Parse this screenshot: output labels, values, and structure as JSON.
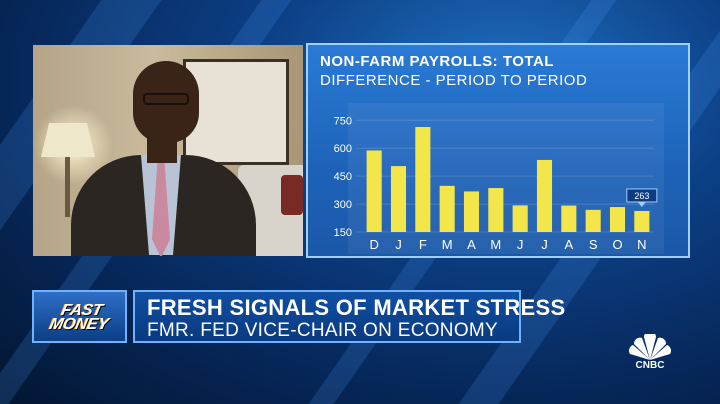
{
  "chart_panel": {
    "title": "NON-FARM PAYROLLS: TOTAL",
    "subtitle": "DIFFERENCE - PERIOD TO PERIOD",
    "callout_label": "263"
  },
  "chart_data": {
    "type": "bar",
    "title": "NON-FARM PAYROLLS: TOTAL",
    "subtitle": "DIFFERENCE - PERIOD TO PERIOD",
    "categories": [
      "D",
      "J",
      "F",
      "M",
      "A",
      "M",
      "J",
      "J",
      "A",
      "S",
      "O",
      "N"
    ],
    "values": [
      588,
      504,
      714,
      398,
      368,
      386,
      293,
      537,
      292,
      269,
      284,
      263
    ],
    "yticks": [
      150,
      300,
      450,
      600,
      750
    ],
    "ylim": [
      150,
      800
    ],
    "bar_color": "#f2e64a",
    "highlight_index": 11,
    "highlight_value_label": "263"
  },
  "lower_third": {
    "show_logo_line1": "FAST",
    "show_logo_line2": "MONEY",
    "headline": "FRESH SIGNALS OF MARKET STRESS",
    "subheadline": "FMR. FED VICE-CHAIR ON ECONOMY"
  },
  "network": {
    "logo_text": "CNBC"
  },
  "colors": {
    "panel_blue": "#1d62b8",
    "bar_yellow": "#f2e64a",
    "accent_border": "#9fd0ff"
  }
}
